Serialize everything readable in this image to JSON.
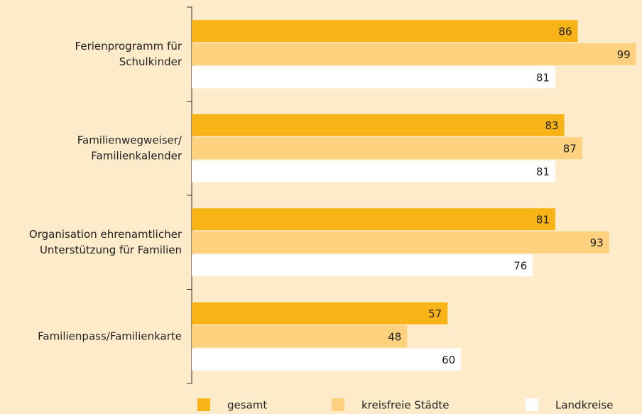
{
  "chart_data": {
    "type": "barh",
    "categories": [
      [
        "Ferienprogramm für",
        "Schulkinder"
      ],
      [
        "Familienwegweiser/",
        "Familienkalender"
      ],
      [
        "Organisation ehrenamtlicher",
        "Unterstützung für Familien"
      ],
      [
        "Familienpass/Familienkarte"
      ]
    ],
    "series": [
      {
        "name": "gesamt",
        "color": "#f8b416",
        "values": [
          86,
          83,
          81,
          57
        ]
      },
      {
        "name": "kreisfreie Städte",
        "color": "#fdd17e",
        "values": [
          99,
          87,
          93,
          48
        ]
      },
      {
        "name": "Landkreise",
        "color": "#ffffff",
        "values": [
          81,
          81,
          76,
          60
        ]
      }
    ],
    "xlim": [
      0,
      100
    ],
    "legend": "bottom"
  }
}
